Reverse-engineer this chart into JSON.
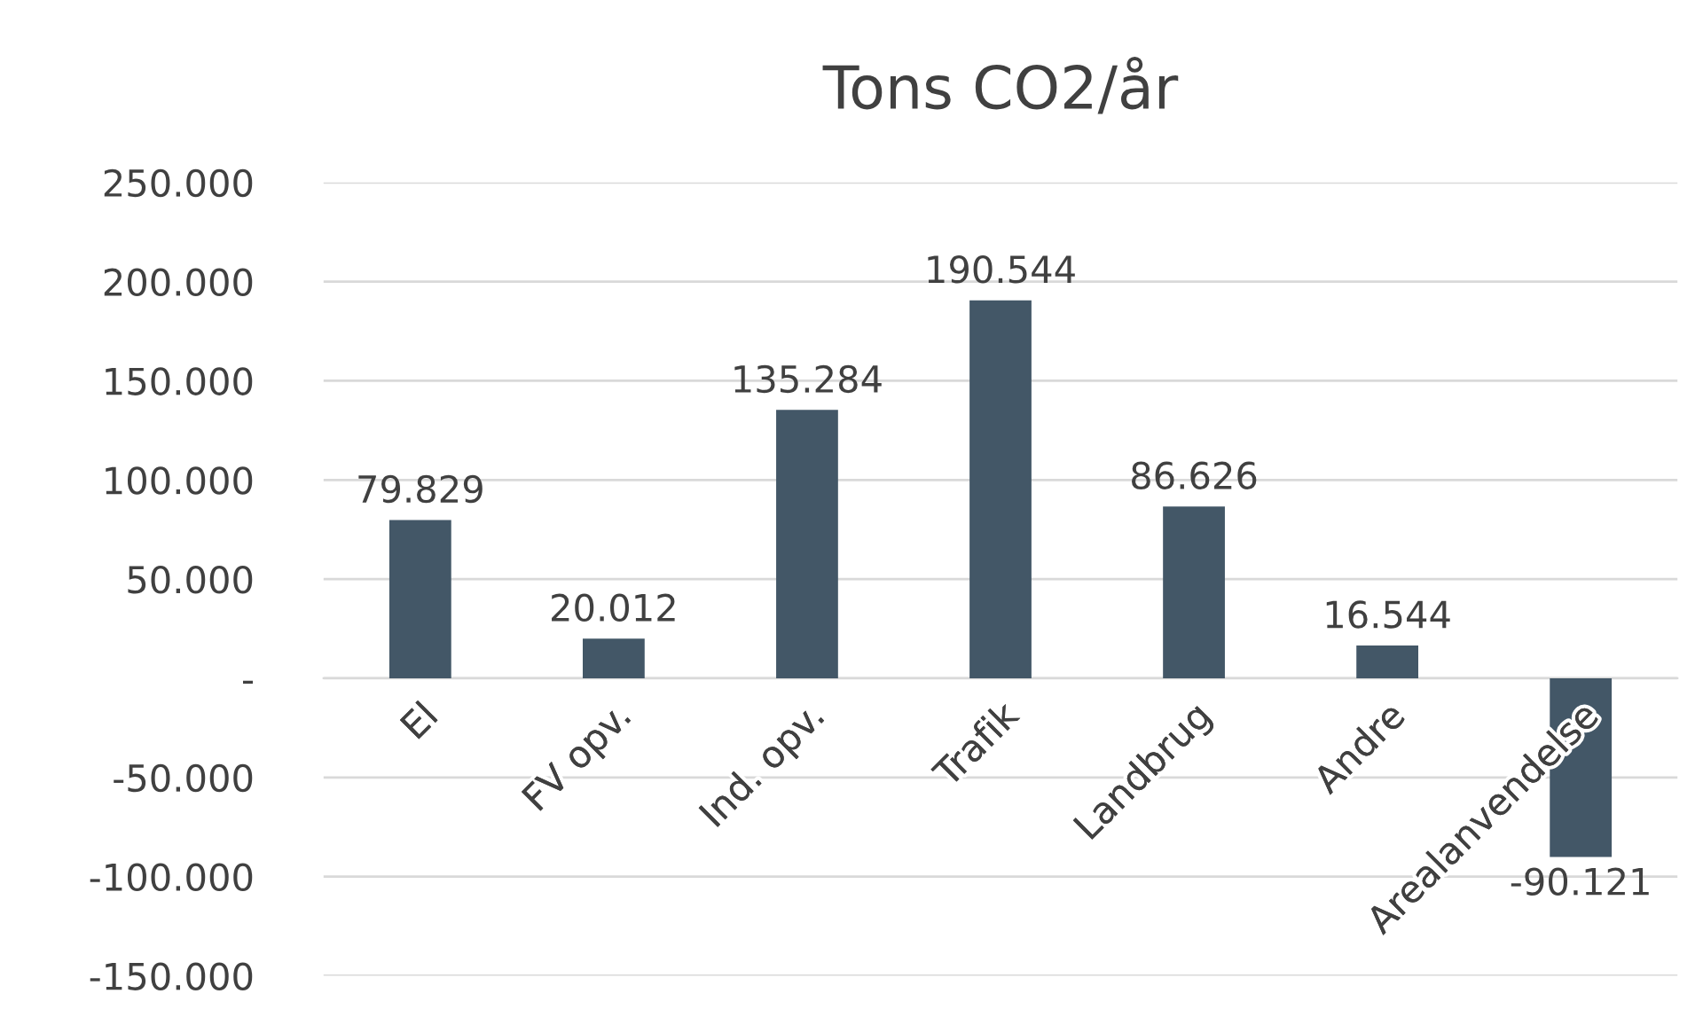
{
  "chart_data": {
    "type": "bar",
    "title": "Tons CO2/år",
    "categories": [
      "El",
      "FV opv.",
      "Ind. opv.",
      "Trafik",
      "Landbrug",
      "Andre",
      "Arealanvendelse"
    ],
    "values": [
      79829,
      20012,
      135284,
      190544,
      86626,
      16544,
      -90121
    ],
    "value_labels": [
      "79.829",
      "20.012",
      "135.284",
      "190.544",
      "86.626",
      "16.544",
      "-90.121"
    ],
    "color": "#435767",
    "ylim": [
      -150000,
      250000
    ],
    "yticks": [
      {
        "value": -150000,
        "label": "-150.000"
      },
      {
        "value": -100000,
        "label": "-100.000"
      },
      {
        "value": -50000,
        "label": "-50.000"
      },
      {
        "value": 0,
        "label": "-"
      },
      {
        "value": 50000,
        "label": "50.000"
      },
      {
        "value": 100000,
        "label": "100.000"
      },
      {
        "value": 150000,
        "label": "150.000"
      },
      {
        "value": 200000,
        "label": "200.000"
      },
      {
        "value": 250000,
        "label": "250.000"
      }
    ],
    "grid": "y",
    "legend": false
  }
}
